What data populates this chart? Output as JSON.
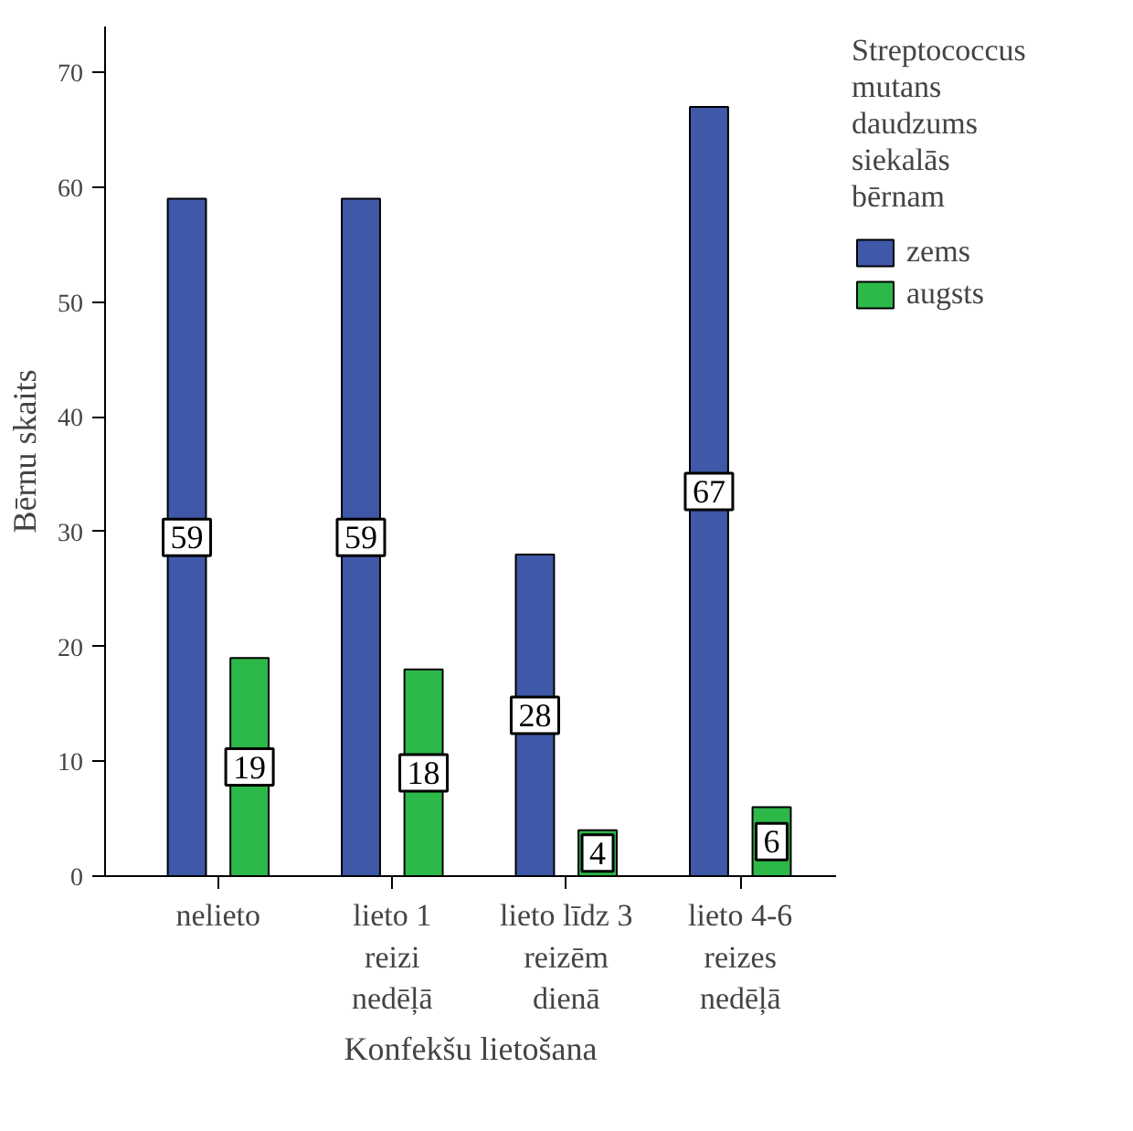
{
  "chart_data": {
    "type": "bar",
    "xlabel": "Konfekšu lietošana",
    "ylabel": "Bērnu skaits",
    "legend_title": "Streptococcus\nmutans\ndaudzums\nsiekalās\nbērnam",
    "categories": [
      "nelieto",
      "lieto 1\nreizi\nnedēļā",
      "lieto līdz 3\nreizēm\ndienā",
      "lieto 4-6\nreizes\nnedēļā"
    ],
    "series": [
      {
        "name": "zems",
        "color": "#3f58a8",
        "values": [
          59,
          59,
          28,
          67
        ]
      },
      {
        "name": "augsts",
        "color": "#2db84a",
        "values": [
          19,
          18,
          4,
          6
        ]
      }
    ],
    "ylim": [
      0,
      74
    ],
    "yticks": [
      0,
      10,
      20,
      30,
      40,
      50,
      60,
      70
    ],
    "data_labels": true,
    "grid": false,
    "legend": "right"
  }
}
